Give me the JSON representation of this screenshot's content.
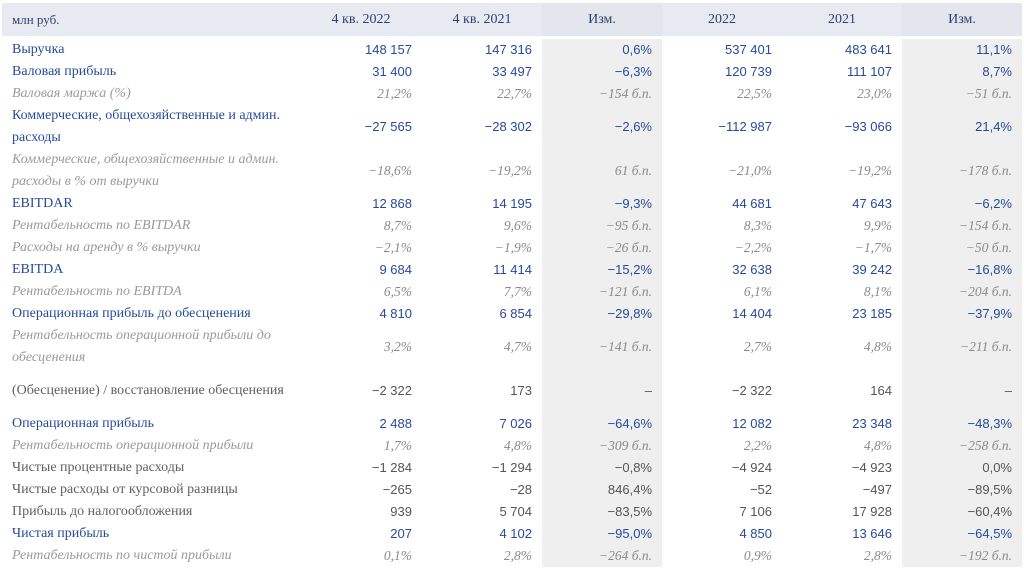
{
  "header": {
    "label": "млн руб.",
    "cols": [
      "4 кв. 2022",
      "4 кв. 2021",
      "Изм.",
      "2022",
      "2021",
      "Изм."
    ]
  },
  "rows": [
    {
      "style": "main",
      "label": "Выручка",
      "values": [
        "148 157",
        "147 316",
        "0,6%",
        "537 401",
        "483 641",
        "11,1%"
      ]
    },
    {
      "style": "main",
      "label": "Валовая прибыль",
      "values": [
        "31 400",
        "33 497",
        "−6,3%",
        "120 739",
        "111 107",
        "8,7%"
      ]
    },
    {
      "style": "sub",
      "label": "Валовая маржа (%)",
      "values": [
        "21,2%",
        "22,7%",
        "−154 б.п.",
        "22,5%",
        "23,0%",
        "−51 б.п."
      ]
    },
    {
      "style": "main",
      "label": "Коммерческие, общехозяйственные и админ. расходы",
      "values": [
        "−27 565",
        "−28 302",
        "−2,6%",
        "−112 987",
        "−93 066",
        "21,4%"
      ]
    },
    {
      "style": "sub",
      "label": "Коммерческие, общехозяйственные и админ. расходы в % от выручки",
      "values": [
        "−18,6%",
        "−19,2%",
        "61 б.п.",
        "−21,0%",
        "−19,2%",
        "−178 б.п."
      ]
    },
    {
      "style": "main",
      "label": "EBITDAR",
      "values": [
        "12 868",
        "14 195",
        "−9,3%",
        "44 681",
        "47 643",
        "−6,2%"
      ]
    },
    {
      "style": "sub",
      "label": "Рентабельность по EBITDAR",
      "values": [
        "8,7%",
        "9,6%",
        "−95 б.п.",
        "8,3%",
        "9,9%",
        "−154 б.п."
      ]
    },
    {
      "style": "sub",
      "label": "Расходы на аренду в % выручки",
      "values": [
        "−2,1%",
        "−1,9%",
        "−26 б.п.",
        "−2,2%",
        "−1,7%",
        "−50 б.п."
      ]
    },
    {
      "style": "main",
      "label": "EBITDA",
      "values": [
        "9 684",
        "11 414",
        "−15,2%",
        "32 638",
        "39 242",
        "−16,8%"
      ]
    },
    {
      "style": "sub",
      "label": "Рентабельность по EBITDA",
      "values": [
        "6,5%",
        "7,7%",
        "−121 б.п.",
        "6,1%",
        "8,1%",
        "−204 б.п."
      ]
    },
    {
      "style": "main",
      "label": "Операционная прибыль до обесценения",
      "values": [
        "4 810",
        "6 854",
        "−29,8%",
        "14 404",
        "23 185",
        "−37,9%"
      ]
    },
    {
      "style": "sub",
      "label": "Рентабельность операционной прибыли до обесценения",
      "values": [
        "3,2%",
        "4,7%",
        "−141 б.п.",
        "2,7%",
        "4,8%",
        "−211 б.п."
      ]
    },
    {
      "style": "plain",
      "label": "(Обесценение) / восстановление обесценения",
      "values": [
        "−2 322",
        "173",
        "–",
        "−2 322",
        "164",
        "–"
      ]
    },
    {
      "style": "main",
      "label": "Операционная прибыль",
      "values": [
        "2 488",
        "7 026",
        "−64,6%",
        "12 082",
        "23 348",
        "−48,3%"
      ]
    },
    {
      "style": "sub",
      "label": "Рентабельность операционной прибыли",
      "values": [
        "1,7%",
        "4,8%",
        "−309 б.п.",
        "2,2%",
        "4,8%",
        "−258 б.п."
      ]
    },
    {
      "style": "plain",
      "label": "Чистые процентные расходы",
      "values": [
        "−1 284",
        "−1 294",
        "−0,8%",
        "−4 924",
        "−4 923",
        "0,0%"
      ]
    },
    {
      "style": "plain",
      "label": "Чистые расходы от курсовой разницы",
      "values": [
        "−265",
        "−28",
        "846,4%",
        "−52",
        "−497",
        "−89,5%"
      ]
    },
    {
      "style": "plain",
      "label": "Прибыль до налогообложения",
      "values": [
        "939",
        "5 704",
        "−83,5%",
        "7 106",
        "17 928",
        "−60,4%"
      ]
    },
    {
      "style": "main",
      "label": "Чистая прибыль",
      "values": [
        "207",
        "4 102",
        "−95,0%",
        "4 850",
        "13 646",
        "−64,5%"
      ]
    },
    {
      "style": "sub",
      "label": "Рентабельность по чистой прибыли",
      "values": [
        "0,1%",
        "2,8%",
        "−264 б.п.",
        "0,9%",
        "2,8%",
        "−192 б.п."
      ]
    }
  ]
}
